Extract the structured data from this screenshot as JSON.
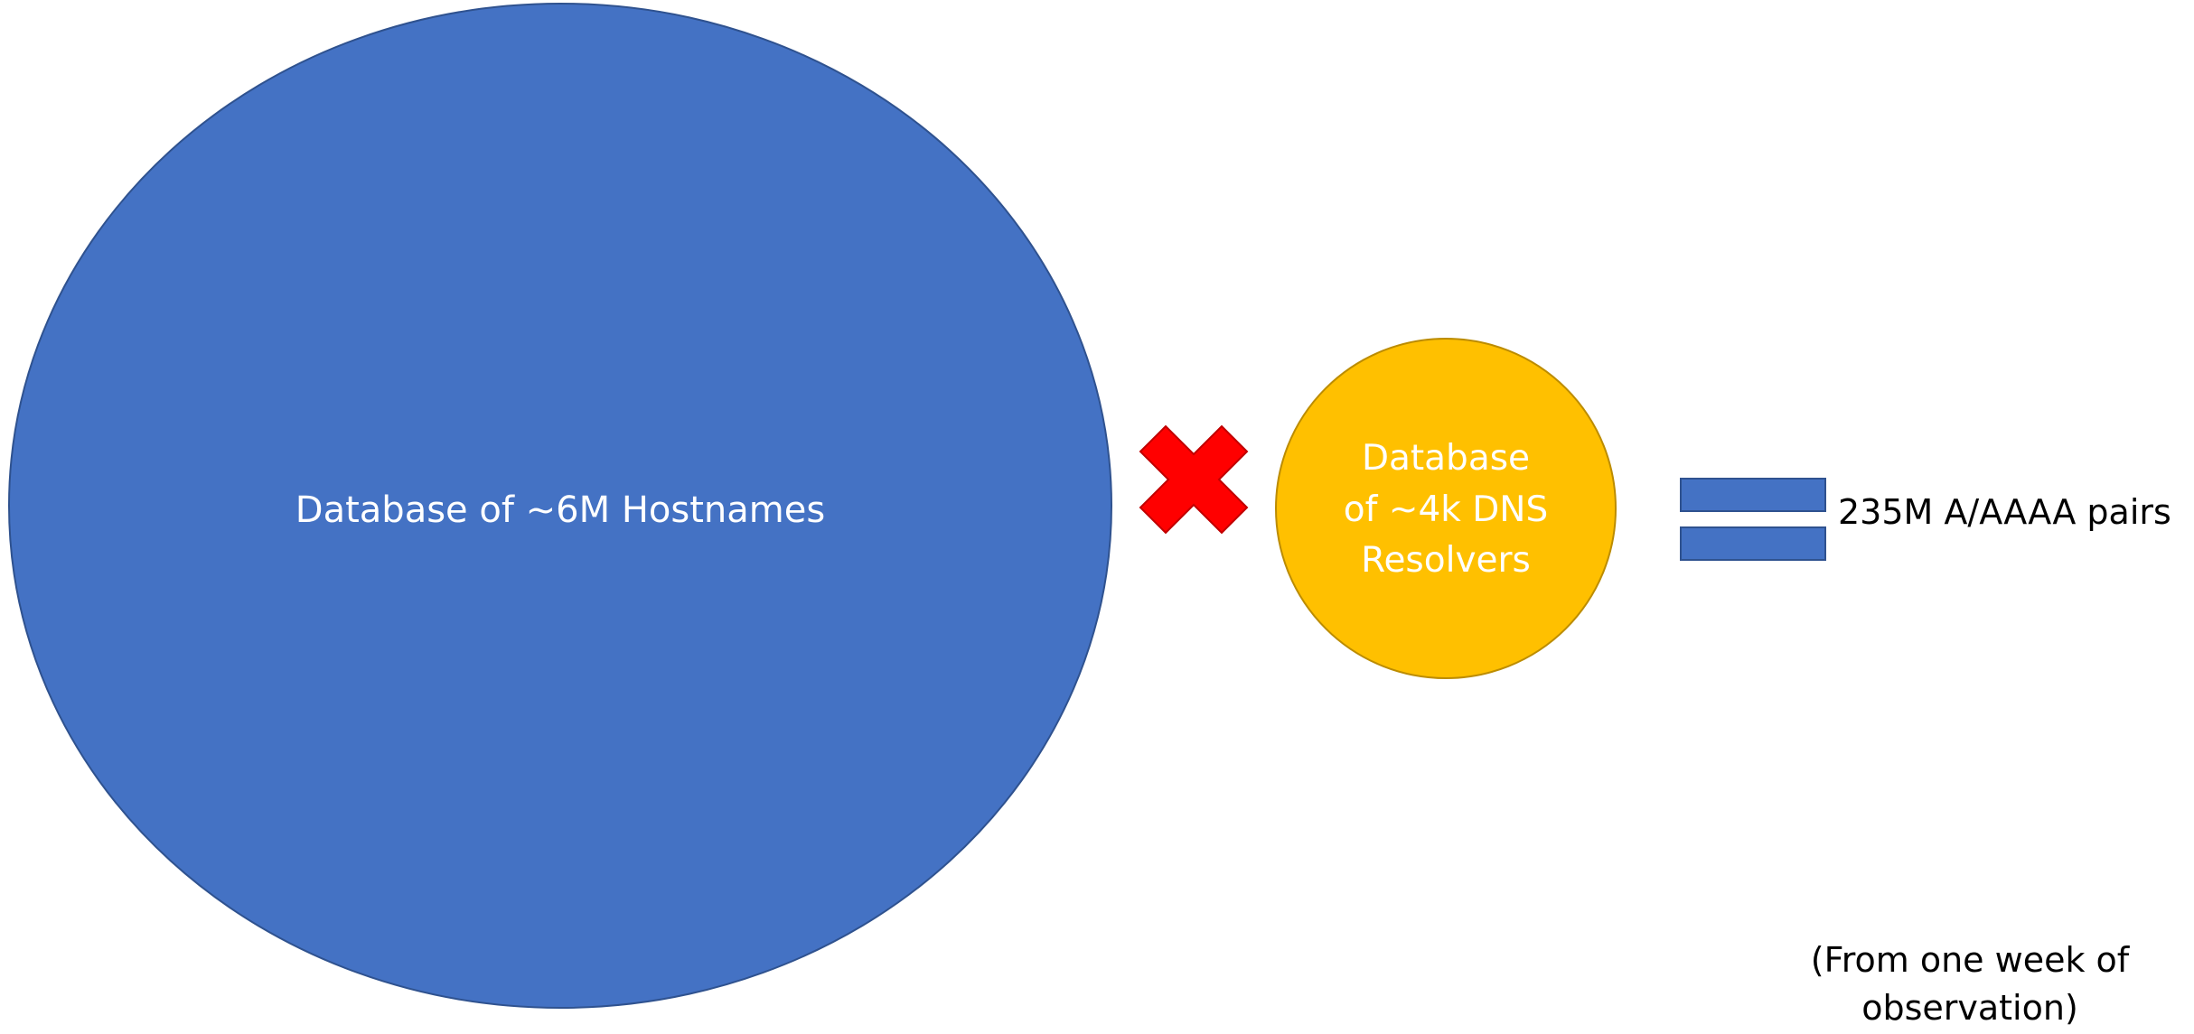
{
  "diagram": {
    "hostnames_db": {
      "label": "Database of ~6M Hostnames",
      "fill": "#4472C4",
      "stroke": "#2F528F"
    },
    "multiply_symbol": {
      "icon": "multiply-x-icon",
      "fill": "#FF0000",
      "stroke": "#C00000"
    },
    "resolvers_db": {
      "label": "Database\nof ~4k DNS\nResolvers",
      "fill": "#FFC000",
      "stroke": "#BC8C00"
    },
    "equals_symbol": {
      "icon": "equals-icon",
      "fill": "#4472C4",
      "stroke": "#2F528F"
    },
    "result": {
      "label": "235M A/AAAA pairs"
    },
    "footnote": {
      "text": "(From one week of\nobservation)"
    }
  }
}
